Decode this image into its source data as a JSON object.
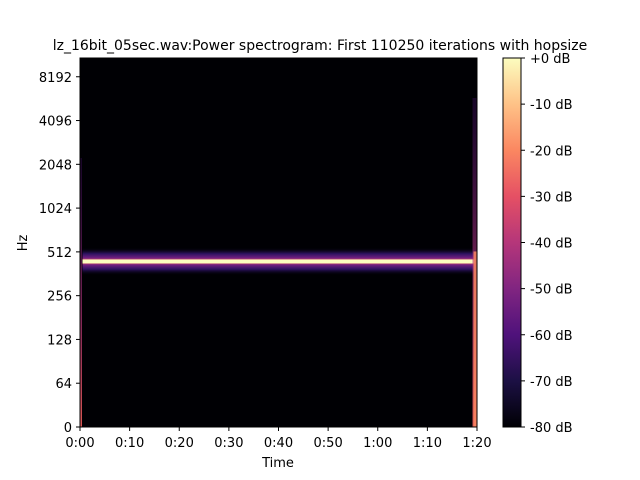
{
  "chart_data": {
    "type": "heatmap",
    "title": "lz_16bit_05sec.wav:Power spectrogram: First 110250 iterations with hopsize",
    "xlabel": "Time",
    "ylabel": "Hz",
    "x_ticks": [
      "0:00",
      "0:10",
      "0:20",
      "0:30",
      "0:40",
      "0:50",
      "1:00",
      "1:10",
      "1:20"
    ],
    "x_tick_seconds": [
      0,
      10,
      20,
      30,
      40,
      50,
      60,
      70,
      80
    ],
    "xlim": [
      0,
      80
    ],
    "y_scale": "log",
    "y_ticks": [
      "0",
      "64",
      "128",
      "256",
      "512",
      "1024",
      "2048",
      "4096",
      "8192"
    ],
    "y_tick_values": [
      0,
      64,
      128,
      256,
      512,
      1024,
      2048,
      4096,
      8192
    ],
    "ylim": [
      0,
      11025
    ],
    "colorbar": {
      "label_ticks": [
        "+0 dB",
        "-10 dB",
        "-20 dB",
        "-30 dB",
        "-40 dB",
        "-50 dB",
        "-60 dB",
        "-70 dB",
        "-80 dB"
      ],
      "range_db": [
        -80,
        0
      ],
      "colormap": "magma"
    },
    "features": {
      "tone_hz": 440,
      "tone_db": 0,
      "tone_start_s": 0.5,
      "tone_end_s": 79.5,
      "background_db": -80
    },
    "grid": false
  },
  "colors": {
    "background": "#000004",
    "tone_peak": "#fcfdbf",
    "frame": "#000000"
  }
}
